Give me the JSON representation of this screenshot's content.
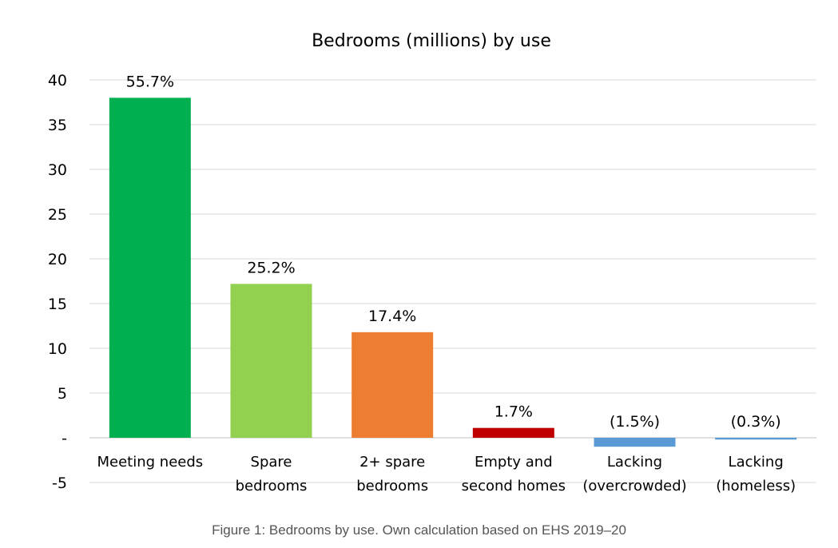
{
  "caption": "Figure 1: Bedrooms by use. Own calculation based on EHS 2019–20",
  "chart_data": {
    "type": "bar",
    "title": "Bedrooms (millions) by use",
    "xlabel": "",
    "ylabel": "",
    "ylim": [
      -5,
      40
    ],
    "yticks": [
      40,
      35,
      30,
      25,
      20,
      15,
      10,
      5,
      0,
      -5
    ],
    "ytick_labels": [
      "40",
      "35",
      "30",
      "25",
      "20",
      "15",
      "10",
      "5",
      "-",
      "-5"
    ],
    "grid": true,
    "categories": [
      [
        "Meeting needs"
      ],
      [
        "Spare",
        "bedrooms"
      ],
      [
        "2+ spare",
        "bedrooms"
      ],
      [
        "Empty and",
        "second homes"
      ],
      [
        "Lacking",
        "(overcrowded)"
      ],
      [
        "Lacking",
        "(homeless)"
      ]
    ],
    "values": [
      38.0,
      17.2,
      11.8,
      1.1,
      -1.0,
      -0.2
    ],
    "data_labels": [
      "55.7%",
      "25.2%",
      "17.4%",
      "1.7%",
      "(1.5%)",
      "(0.3%)"
    ],
    "colors": [
      "#00B050",
      "#92D050",
      "#ED7D31",
      "#C00000",
      "#5B9BD5",
      "#5B9BD5"
    ]
  }
}
